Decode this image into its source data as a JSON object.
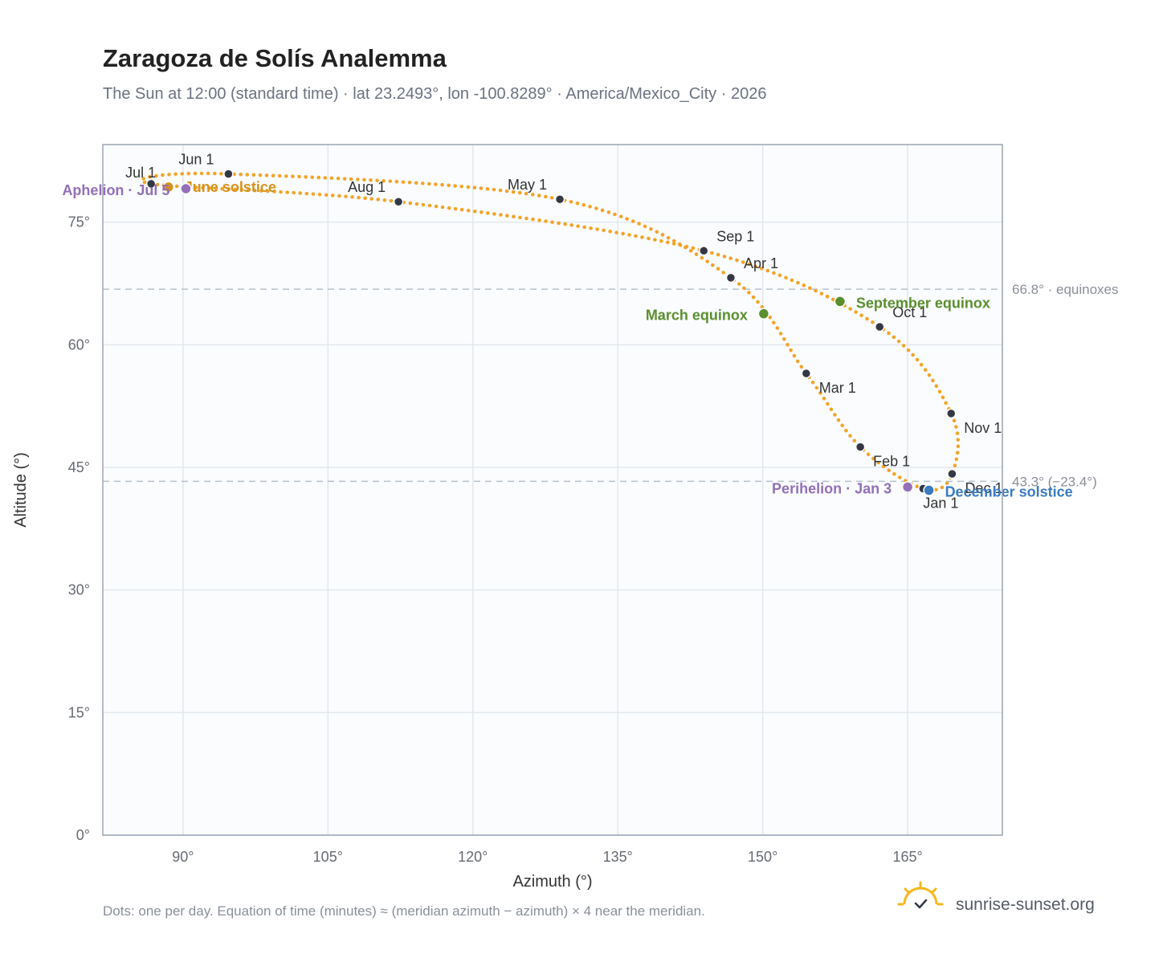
{
  "header": {
    "title": "Zaragoza de Solís Analemma",
    "subtitle": "The Sun at 12:00 (standard time) · lat 23.2493°, lon -100.8289° · America/Mexico_City · 2026"
  },
  "footer": {
    "note": "Dots: one per day. Equation of time (minutes) ≈ (meridian azimuth − azimuth) × 4 near the meridian.",
    "brand": "sunrise-sunset.org",
    "brand_icon": "sun-logo-icon"
  },
  "colors": {
    "curve": "#f2a427",
    "month_dot": "#333844",
    "equinox": "#5b8f2e",
    "june_solstice": "#d8921c",
    "december_solstice": "#3b7bbf",
    "apsis": "#9370b8",
    "plot_bg": "#fafcfe",
    "grid": "#e3e8ee",
    "frame": "#9aa4b2",
    "reference": "#b7c0ca"
  },
  "chart_data": {
    "type": "scatter",
    "xlabel": "Azimuth (°)",
    "ylabel": "Altitude (°)",
    "xlim": [
      81.7,
      174.8
    ],
    "ylim": [
      0,
      84.5
    ],
    "x_ticks": [
      90,
      105,
      120,
      135,
      150,
      165
    ],
    "x_tick_labels": [
      "90°",
      "105°",
      "120°",
      "135°",
      "150°",
      "165°"
    ],
    "y_ticks": [
      0,
      15,
      30,
      45,
      60,
      75
    ],
    "y_tick_labels": [
      "0°",
      "15°",
      "30°",
      "45°",
      "60°",
      "75°"
    ],
    "grid": true,
    "reference_lines": [
      {
        "y": 66.8,
        "label": "66.8° · equinoxes"
      },
      {
        "y": 43.3,
        "label": "43.3° (−23.4°)"
      }
    ],
    "month_points": [
      {
        "label": "Jan 1",
        "az": 166.6,
        "alt": 42.4
      },
      {
        "label": "Feb 1",
        "az": 160.1,
        "alt": 47.5
      },
      {
        "label": "Mar 1",
        "az": 154.5,
        "alt": 56.5
      },
      {
        "label": "Apr 1",
        "az": 146.7,
        "alt": 68.2
      },
      {
        "label": "May 1",
        "az": 129.0,
        "alt": 77.8
      },
      {
        "label": "Jun 1",
        "az": 94.7,
        "alt": 80.9
      },
      {
        "label": "Jul 1",
        "az": 86.7,
        "alt": 79.7
      },
      {
        "label": "Aug 1",
        "az": 112.3,
        "alt": 77.5
      },
      {
        "label": "Sep 1",
        "az": 143.9,
        "alt": 71.5
      },
      {
        "label": "Oct 1",
        "az": 162.1,
        "alt": 62.2
      },
      {
        "label": "Nov 1",
        "az": 169.5,
        "alt": 51.6
      },
      {
        "label": "Dec 1",
        "az": 169.6,
        "alt": 44.2
      }
    ],
    "events": [
      {
        "label": "March equinox",
        "az": 150.1,
        "alt": 63.8,
        "color_key": "equinox"
      },
      {
        "label": "September equinox",
        "az": 158.0,
        "alt": 65.3,
        "color_key": "equinox"
      },
      {
        "label": "June solstice",
        "az": 88.5,
        "alt": 79.3,
        "color_key": "june_solstice"
      },
      {
        "label": "December solstice",
        "az": 167.2,
        "alt": 42.2,
        "color_key": "december_solstice"
      },
      {
        "label": "Perihelion · Jan 3",
        "az": 165.0,
        "alt": 42.6,
        "color_key": "apsis"
      },
      {
        "label": "Aphelion · Jul 5",
        "az": 90.3,
        "alt": 79.1,
        "color_key": "apsis"
      }
    ]
  }
}
